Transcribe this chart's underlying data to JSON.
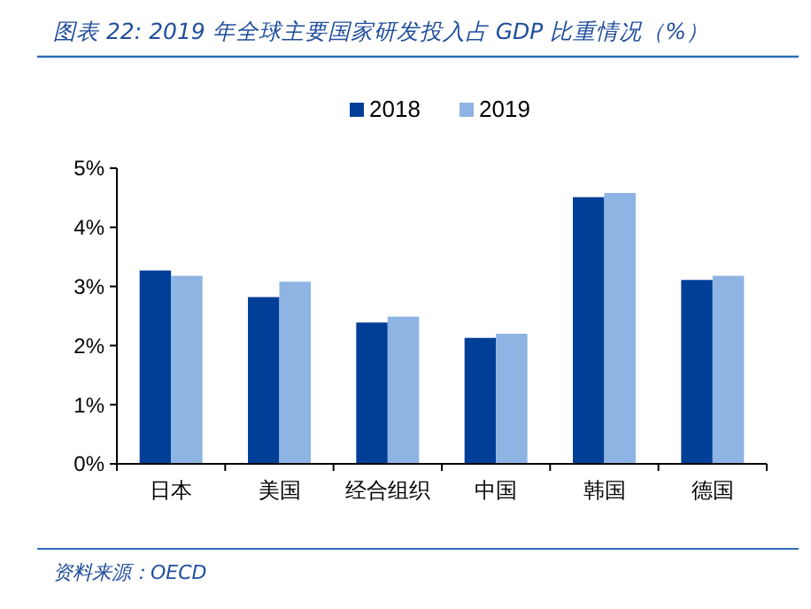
{
  "chart_data": {
    "type": "bar",
    "title": "图表 22:  2019 年全球主要国家研发投入占 GDP 比重情况（%）",
    "categories": [
      "日本",
      "美国",
      "经合组织",
      "中国",
      "韩国",
      "德国"
    ],
    "series": [
      {
        "name": "2018",
        "color": "#003f98",
        "values": [
          3.27,
          2.82,
          2.39,
          2.13,
          4.51,
          3.11
        ]
      },
      {
        "name": "2019",
        "color": "#8db4e2",
        "values": [
          3.18,
          3.08,
          2.49,
          2.2,
          4.58,
          3.18
        ]
      }
    ],
    "ylim": [
      0,
      5
    ],
    "yticks": [
      {
        "value": 0,
        "label": "0%"
      },
      {
        "value": 1,
        "label": "1%"
      },
      {
        "value": 2,
        "label": "2%"
      },
      {
        "value": 3,
        "label": "3%"
      },
      {
        "value": 4,
        "label": "4%"
      },
      {
        "value": 5,
        "label": "5%"
      }
    ],
    "legend": "top",
    "annotations": [
      "资料来源：OECD"
    ]
  }
}
